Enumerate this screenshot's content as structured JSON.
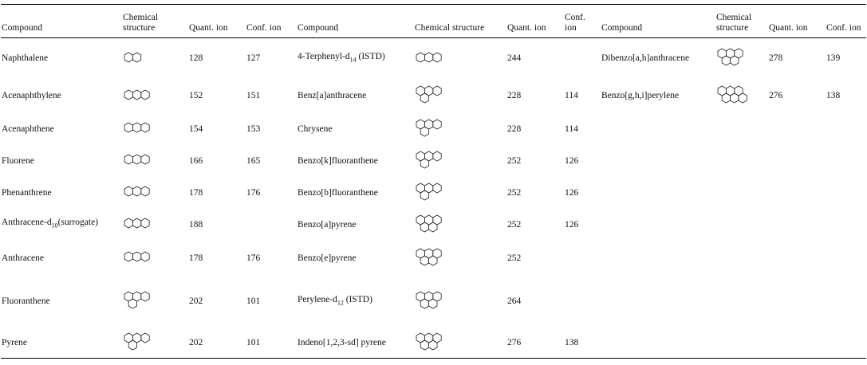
{
  "table": {
    "header": [
      "Compound",
      "Chemical structure",
      "Quant. ion",
      "Conf. ion",
      "Compound",
      "Chemical structure",
      "Quant. ion",
      "Conf. ion",
      "Compound",
      "Chemical structure",
      "Quant. ion",
      "Conf. ion"
    ],
    "rows": [
      [
        "Naphthalene",
        null,
        128,
        127,
        {
          "pre": "4-Terphenyl-d",
          "sub": "14",
          "post": " (ISTD)"
        },
        null,
        244,
        null,
        "Dibenzo[a,h]anthracene",
        null,
        278,
        139
      ],
      [
        "Acenaphthylene",
        null,
        152,
        151,
        "Benz[a]anthracene",
        null,
        228,
        114,
        "Benzo[g,h,i]perylene",
        null,
        276,
        138
      ],
      [
        "Acenaphthene",
        null,
        154,
        153,
        "Chrysene",
        null,
        228,
        114,
        null,
        null,
        null,
        null
      ],
      [
        "Fluorene",
        null,
        166,
        165,
        "Benzo[k]fluoranthene",
        null,
        252,
        126,
        null,
        null,
        null,
        null
      ],
      [
        "Phenanthrene",
        null,
        178,
        176,
        "Benzo[b]fluoranthene",
        null,
        252,
        126,
        null,
        null,
        null,
        null
      ],
      [
        {
          "pre": "Anthracene-d",
          "sub": "10",
          "post": "(surrogate)"
        },
        null,
        188,
        null,
        "Benzo[a]pyrene",
        null,
        252,
        126,
        null,
        null,
        null,
        null
      ],
      [
        "Anthracene",
        null,
        178,
        176,
        "Benzo[e]pyrene",
        null,
        252,
        null,
        null,
        null,
        null,
        null
      ],
      [
        "Fluoranthene",
        null,
        202,
        101,
        {
          "pre": "Perylene-d",
          "sub": "12",
          "post": " (ISTD)"
        },
        null,
        264,
        null,
        null,
        null,
        null,
        null
      ],
      [
        "Pyrene",
        null,
        202,
        101,
        "Indeno[1,2,3-sd] pyrene",
        null,
        276,
        138,
        null,
        null,
        null,
        null
      ]
    ]
  }
}
